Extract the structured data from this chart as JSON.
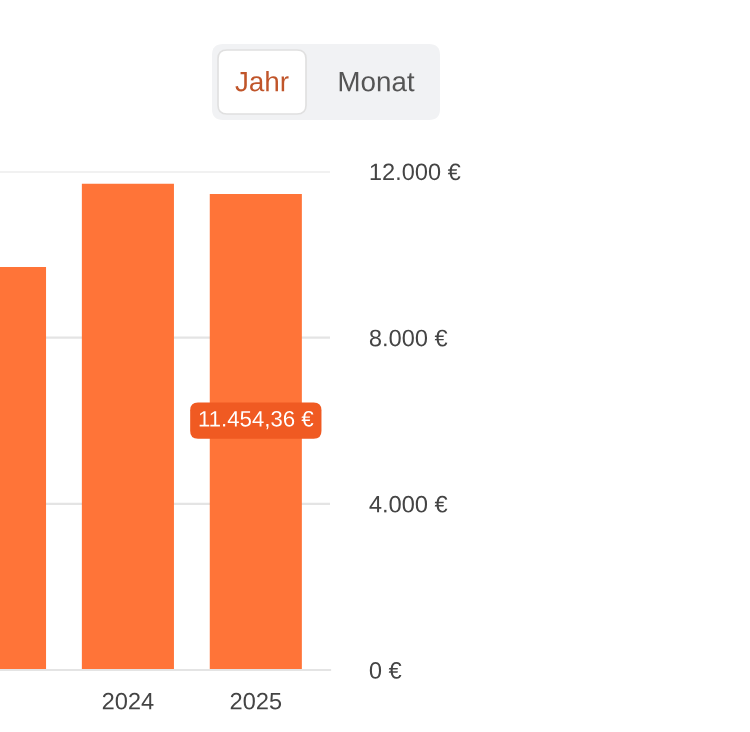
{
  "chart_data": {
    "type": "bar",
    "categories": [
      null,
      "2024",
      "2025"
    ],
    "values": [
      9700,
      11700,
      11454.36
    ],
    "value_labels": [
      null,
      null,
      "11.454,36 €"
    ],
    "color": "#ff7438",
    "ylim": [
      0,
      12000
    ],
    "yticks": [
      {
        "value": 0,
        "label": "0 €"
      },
      {
        "value": 4000,
        "label": "4.000 €"
      },
      {
        "value": 8000,
        "label": "8.000 €"
      },
      {
        "value": 12000,
        "label": "12.000 €"
      }
    ],
    "grid": "y",
    "annotations": [
      "Jahr",
      "Monat"
    ]
  }
}
